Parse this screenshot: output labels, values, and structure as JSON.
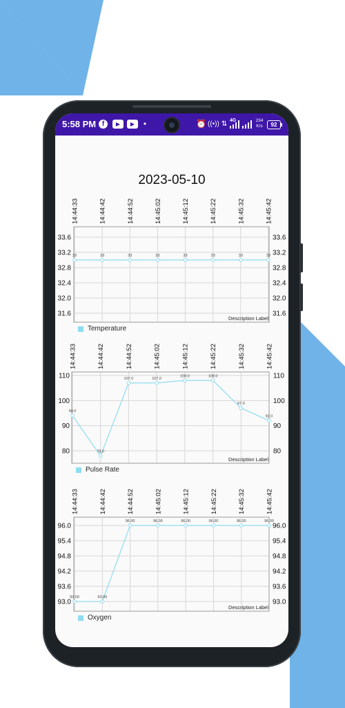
{
  "status_bar": {
    "time": "5:58 PM",
    "icons": [
      "facebook-icon",
      "youtube-icon",
      "youtube-icon",
      "dot-icon",
      "alarm-icon",
      "hotspot-icon",
      "data-transfer-icon",
      "signal-icon",
      "signal-icon"
    ],
    "network": "4G",
    "speed_value": "234",
    "speed_unit": "K/s",
    "battery": "92",
    "bar_color": "#3f17a8"
  },
  "page": {
    "date": "2023-05-10"
  },
  "colors": {
    "line": "#8fdcef",
    "grid": "#d6d6d6",
    "axis": "#9a9a9a",
    "background_left": "#6fb3e8"
  },
  "chart_data": [
    {
      "type": "line",
      "categories": [
        "14:44:33",
        "14:44:42",
        "14:44:52",
        "14:45:02",
        "14:45:12",
        "14:45:22",
        "14:45:32",
        "14:45:42"
      ],
      "series": [
        {
          "name": "Temperature",
          "values": [
            33,
            33,
            33,
            33,
            33,
            33,
            33,
            33
          ]
        }
      ],
      "point_labels": [
        "33",
        "33",
        "33",
        "33",
        "33",
        "33",
        "33",
        "33"
      ],
      "y_ticks": [
        "33.6",
        "33.2",
        "32.8",
        "32.4",
        "32.0",
        "31.6"
      ],
      "description": "Description Label",
      "legend": "Temperature",
      "grid": true
    },
    {
      "type": "line",
      "categories": [
        "14:44:33",
        "14:44:42",
        "14:44:52",
        "14:45:02",
        "14:45:12",
        "14:45:22",
        "14:45:32",
        "14:45:42"
      ],
      "series": [
        {
          "name": "Pulse Rate",
          "values": [
            94,
            78,
            107,
            107,
            108,
            108,
            97,
            92
          ]
        }
      ],
      "point_labels": [
        "94.0",
        "78.0",
        "107.0",
        "107.0",
        "108.0",
        "108.0",
        "97.0",
        "92.0"
      ],
      "y_ticks": [
        "110",
        "100",
        "90",
        "80"
      ],
      "description": "Description Label",
      "legend": "Pulse Rate",
      "grid": true
    },
    {
      "type": "line",
      "categories": [
        "14:44:33",
        "14:44:42",
        "14:44:52",
        "14:45:02",
        "14:45:12",
        "14:45:22",
        "14:45:32",
        "14:45:42"
      ],
      "series": [
        {
          "name": "Oxygen",
          "values": [
            93,
            93,
            96,
            96,
            96,
            96,
            96,
            96
          ]
        }
      ],
      "point_labels": [
        "93.00",
        "93.00",
        "96.00",
        "96.00",
        "96.00",
        "96.00",
        "96.00",
        "96.00"
      ],
      "y_ticks": [
        "96.0",
        "95.4",
        "94.8",
        "94.2",
        "93.6",
        "93.0"
      ],
      "description": "Description Label",
      "legend": "Oxygen",
      "grid": true
    }
  ]
}
